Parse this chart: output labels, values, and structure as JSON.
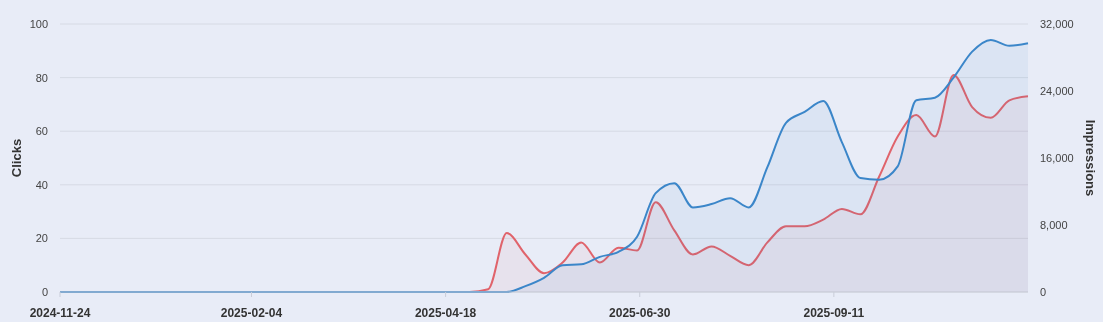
{
  "chart_data": {
    "type": "area",
    "xlabel": null,
    "ylabel": "Clicks",
    "y2label": "Impressions",
    "x": [
      "2024-11-24",
      "2024-12-01",
      "2024-12-08",
      "2024-12-15",
      "2024-12-22",
      "2024-12-29",
      "2025-01-05",
      "2025-01-12",
      "2025-01-19",
      "2025-01-26",
      "2025-02-02",
      "2025-02-09",
      "2025-02-16",
      "2025-02-23",
      "2025-03-02",
      "2025-03-09",
      "2025-03-16",
      "2025-03-23",
      "2025-03-30",
      "2025-04-06",
      "2025-04-13",
      "2025-04-20",
      "2025-04-27",
      "2025-05-04",
      "2025-05-11",
      "2025-05-18",
      "2025-05-25",
      "2025-06-01",
      "2025-06-08",
      "2025-06-15",
      "2025-06-22",
      "2025-06-29",
      "2025-07-06",
      "2025-07-13",
      "2025-07-20",
      "2025-07-27",
      "2025-08-03",
      "2025-08-10",
      "2025-08-17",
      "2025-08-24",
      "2025-08-31",
      "2025-09-07",
      "2025-09-14",
      "2025-09-21",
      "2025-09-28",
      "2025-10-05",
      "2025-10-12",
      "2025-10-19",
      "2025-10-26",
      "2025-11-02",
      "2025-11-09",
      "2025-11-16",
      "2025-11-23"
    ],
    "series": [
      {
        "color": "#e0636b",
        "values": [
          0,
          0,
          0,
          0,
          0,
          0,
          0,
          0,
          0,
          0,
          0,
          0,
          0,
          0,
          0,
          0,
          0,
          0,
          0,
          0,
          0,
          0,
          0,
          1,
          22,
          14,
          7,
          11,
          18.5,
          11,
          16.5,
          15.5,
          33.5,
          23,
          14,
          17,
          13.5,
          10,
          18.5,
          24.5,
          24.5,
          27,
          31,
          29,
          43,
          58,
          66,
          58,
          81,
          69,
          65,
          71.5,
          73
        ]
      },
      {
        "color": "#3b86c9",
        "axis": "y2",
        "values": [
          0,
          0,
          0,
          0,
          0,
          0,
          0,
          0,
          0,
          0,
          0,
          0,
          0,
          0,
          0,
          0,
          0,
          0,
          0,
          0,
          0,
          0,
          0,
          0,
          0,
          700,
          1700,
          3200,
          3300,
          4200,
          4800,
          6600,
          11800,
          13000,
          10100,
          10500,
          11200,
          10100,
          14900,
          20200,
          21500,
          22800,
          17900,
          13600,
          13400,
          15000,
          22900,
          23200,
          25600,
          28700,
          30100,
          29400,
          29700
        ]
      }
    ],
    "xlim": [
      "2024-11-24",
      "2025-11-23"
    ],
    "xticks": [
      "2024-11-24",
      "2025-02-04",
      "2025-04-18",
      "2025-06-30",
      "2025-09-11"
    ],
    "ylim": [
      0,
      100
    ],
    "yticks": [
      0,
      20,
      40,
      60,
      80,
      100
    ],
    "y2lim": [
      0,
      32000
    ],
    "y2ticks": [
      {
        "value": 0,
        "label": "0"
      },
      {
        "value": 8000,
        "label": "8,000"
      },
      {
        "value": 16000,
        "label": "16,000"
      },
      {
        "value": 24000,
        "label": "24,000"
      },
      {
        "value": 32000,
        "label": "32,000"
      }
    ],
    "grid": "y"
  }
}
